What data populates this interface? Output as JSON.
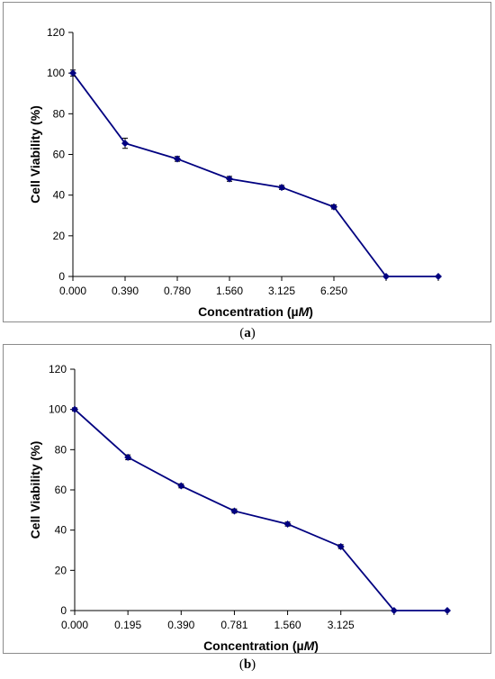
{
  "chart_data": [
    {
      "type": "line",
      "panel_label": "(a)",
      "caption_paren_open": "(",
      "caption_letter": "a",
      "caption_paren_close": ")",
      "xlabel_prefix": "Concentration (",
      "xlabel_mu": "µ",
      "xlabel_M": "M",
      "xlabel_suffix": ")",
      "ylabel": "Cell Viability (%)",
      "categories": [
        "0.000",
        "0.390",
        "0.780",
        "1.560",
        "3.125",
        "6.250",
        "",
        ""
      ],
      "values": [
        100,
        65.5,
        57.8,
        48,
        43.8,
        34.2,
        0,
        0
      ],
      "error": [
        1.5,
        2.5,
        1.2,
        1.2,
        1.0,
        1.0,
        0,
        0
      ],
      "ylim": [
        0,
        120
      ],
      "yticks": [
        0,
        20,
        40,
        60,
        80,
        100,
        120
      ],
      "grid": false,
      "colors": {
        "series": "#000080"
      }
    },
    {
      "type": "line",
      "panel_label": "(b)",
      "caption_paren_open": "(",
      "caption_letter": "b",
      "caption_paren_close": ")",
      "xlabel_prefix": "Concentration (",
      "xlabel_mu": "µ",
      "xlabel_M": "M",
      "xlabel_suffix": ")",
      "ylabel": "Cell Viability (%)",
      "categories": [
        "0.000",
        "0.195",
        "0.390",
        "0.781",
        "1.560",
        "3.125",
        "",
        ""
      ],
      "values": [
        100,
        76.2,
        62,
        49.5,
        43,
        31.8,
        0,
        0
      ],
      "error": [
        0.8,
        1.2,
        1.0,
        1.0,
        1.0,
        1.0,
        0,
        0
      ],
      "ylim": [
        0,
        120
      ],
      "yticks": [
        0,
        20,
        40,
        60,
        80,
        100,
        120
      ],
      "grid": false,
      "colors": {
        "series": "#000080"
      }
    }
  ]
}
